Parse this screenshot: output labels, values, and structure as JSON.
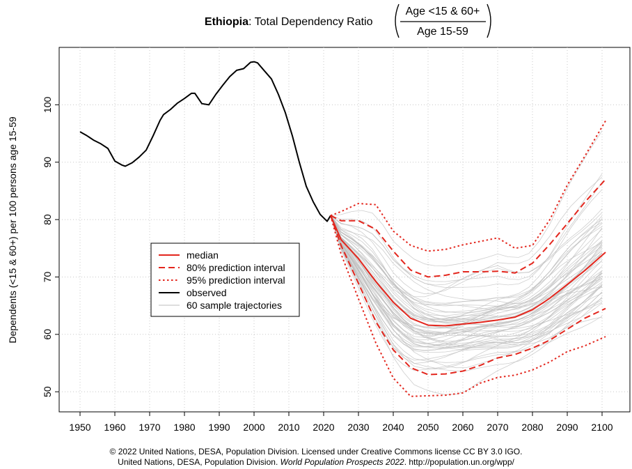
{
  "chart_data": {
    "type": "line",
    "title": {
      "country": "Ethiopia",
      "text": ": Total Dependency Ratio",
      "numerator": "Age <15 & 60+",
      "denominator": "Age 15-59"
    },
    "ylabel": "Dependents (<15 & 60+) per 100 persons age 15-59",
    "xlabel": "",
    "xlim": [
      1944,
      2108
    ],
    "ylim": [
      46.5,
      110
    ],
    "x_ticks": [
      1950,
      1960,
      1970,
      1980,
      1990,
      2000,
      2010,
      2020,
      2030,
      2040,
      2050,
      2060,
      2070,
      2080,
      2090,
      2100
    ],
    "y_ticks": [
      50,
      60,
      70,
      80,
      90,
      100
    ],
    "grid": true,
    "legend_position": "middle-left",
    "colors": {
      "observed": "#000000",
      "projection": "#e3261d",
      "trajectories": "#bdbdbd"
    },
    "series": [
      {
        "name": "observed",
        "style": "solid",
        "color": "#000000",
        "x": [
          1950,
          1952,
          1954,
          1956,
          1958,
          1960,
          1962,
          1963,
          1965,
          1967,
          1969,
          1971,
          1973,
          1974,
          1976,
          1978,
          1980,
          1982,
          1983,
          1985,
          1987,
          1989,
          1991,
          1993,
          1995,
          1997,
          1999,
          2000,
          2001,
          2003,
          2005,
          2007,
          2009,
          2011,
          2013,
          2015,
          2017,
          2019,
          2021,
          2022
        ],
        "y": [
          95.3,
          94.6,
          93.8,
          93.2,
          92.4,
          90.2,
          89.5,
          89.3,
          89.9,
          90.9,
          92.1,
          94.6,
          97.3,
          98.3,
          99.2,
          100.3,
          101.1,
          102.0,
          102.0,
          100.2,
          100.0,
          101.8,
          103.4,
          104.9,
          106.0,
          106.3,
          107.4,
          107.5,
          107.3,
          105.9,
          104.5,
          101.8,
          98.6,
          94.6,
          90.0,
          85.8,
          83.1,
          80.9,
          79.7,
          80.7
        ]
      },
      {
        "name": "median",
        "style": "solid",
        "color": "#e3261d",
        "x": [
          2022,
          2025,
          2030,
          2035,
          2040,
          2045,
          2050,
          2055,
          2060,
          2065,
          2070,
          2075,
          2080,
          2085,
          2090,
          2095,
          2101
        ],
        "y": [
          80.7,
          76.5,
          73.2,
          69.2,
          65.6,
          62.8,
          61.6,
          61.5,
          61.8,
          62.1,
          62.5,
          63.0,
          64.3,
          66.3,
          68.7,
          71.1,
          74.3
        ]
      },
      {
        "name": "80% prediction interval (upper)",
        "style": "dashed",
        "color": "#e3261d",
        "x": [
          2022,
          2025,
          2030,
          2035,
          2040,
          2045,
          2050,
          2055,
          2060,
          2065,
          2070,
          2075,
          2080,
          2085,
          2090,
          2095,
          2101
        ],
        "y": [
          80.7,
          79.8,
          79.8,
          78.3,
          74.5,
          71.2,
          70.0,
          70.3,
          70.9,
          70.9,
          71.0,
          70.7,
          72.4,
          75.7,
          79.3,
          83.0,
          87.0
        ]
      },
      {
        "name": "80% prediction interval (lower)",
        "style": "dashed",
        "color": "#e3261d",
        "x": [
          2022,
          2025,
          2030,
          2035,
          2040,
          2045,
          2050,
          2055,
          2060,
          2065,
          2070,
          2075,
          2080,
          2085,
          2090,
          2095,
          2101
        ],
        "y": [
          80.7,
          75.5,
          68.9,
          62.2,
          57.3,
          54.2,
          53.0,
          53.1,
          53.6,
          54.6,
          55.9,
          56.5,
          57.6,
          59.0,
          60.9,
          62.8,
          64.5
        ]
      },
      {
        "name": "95% prediction interval (upper)",
        "style": "dotted",
        "color": "#e3261d",
        "x": [
          2022,
          2025,
          2030,
          2035,
          2040,
          2045,
          2050,
          2055,
          2060,
          2065,
          2070,
          2075,
          2080,
          2085,
          2090,
          2095,
          2101
        ],
        "y": [
          80.7,
          81.4,
          82.8,
          82.6,
          78.0,
          75.5,
          74.5,
          74.8,
          75.6,
          76.2,
          76.8,
          75.0,
          75.5,
          80.0,
          86.0,
          91.0,
          97.2
        ]
      },
      {
        "name": "95% prediction interval (lower)",
        "style": "dotted",
        "color": "#e3261d",
        "x": [
          2022,
          2025,
          2030,
          2035,
          2040,
          2045,
          2050,
          2055,
          2060,
          2065,
          2070,
          2075,
          2080,
          2085,
          2090,
          2095,
          2101
        ],
        "y": [
          80.7,
          74.0,
          66.2,
          58.5,
          52.4,
          49.2,
          49.3,
          49.4,
          49.8,
          51.5,
          52.5,
          52.9,
          53.8,
          55.2,
          57.0,
          58.0,
          59.6
        ]
      }
    ],
    "sample_trajectories": {
      "name": "60 sample trajectories",
      "count": 60,
      "color": "#bdbdbd",
      "x": [
        2022,
        2030,
        2040,
        2050,
        2060,
        2070,
        2080,
        2090,
        2101
      ]
    },
    "legend": [
      {
        "label": "median",
        "style": "solid",
        "color": "#e3261d"
      },
      {
        "label": "80% prediction interval",
        "style": "dashed",
        "color": "#e3261d"
      },
      {
        "label": "95% prediction interval",
        "style": "dotted",
        "color": "#e3261d"
      },
      {
        "label": "observed",
        "style": "solid",
        "color": "#000000"
      },
      {
        "label": "60 sample trajectories",
        "style": "solid",
        "color": "#bdbdbd"
      }
    ]
  },
  "footer": {
    "line1": "© 2022 United Nations, DESA, Population Division. Licensed under Creative Commons license CC BY 3.0 IGO.",
    "line2_prefix": "United Nations, DESA, Population Division. ",
    "line2_italic": "World Population Prospects 2022",
    "line2_suffix": ". http://population.un.org/wpp/"
  }
}
